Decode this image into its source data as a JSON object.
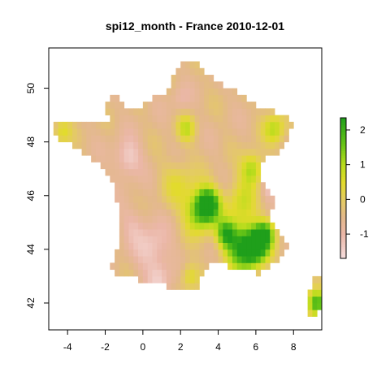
{
  "title": "spi12_month - France 2010-12-01",
  "chart_data": {
    "type": "heatmap",
    "title": "spi12_month - France 2010-12-01",
    "xlabel": "",
    "ylabel": "",
    "xlim": [
      -5,
      9.5
    ],
    "ylim": [
      41,
      51.5
    ],
    "x_ticks": [
      -4,
      -2,
      0,
      2,
      4,
      6,
      8
    ],
    "y_ticks": [
      42,
      44,
      46,
      48,
      50
    ],
    "x_tick_labels": [
      "-4",
      "-2",
      "0",
      "2",
      "4",
      "6",
      "8"
    ],
    "y_tick_labels": [
      "42",
      "44",
      "46",
      "48",
      "50"
    ],
    "legend": {
      "position": "right",
      "range": [
        -1.7,
        2.35
      ],
      "ticks": [
        -1,
        0,
        1,
        2
      ],
      "tick_labels": [
        "-1",
        "0",
        "1",
        "2"
      ],
      "colors": [
        "#f6dcdc",
        "#e8b4a4",
        "#e2c47a",
        "#e1d63a",
        "#b9dc1c",
        "#5bc215",
        "#1fa219"
      ]
    },
    "grid": false,
    "color_stops": [
      {
        "value": -1.7,
        "color": "#f6dede"
      },
      {
        "value": -1.0,
        "color": "#ebb7a8"
      },
      {
        "value": -0.5,
        "color": "#e3b98b"
      },
      {
        "value": 0.0,
        "color": "#e4cc61"
      },
      {
        "value": 0.5,
        "color": "#e2db2c"
      },
      {
        "value": 1.0,
        "color": "#b9dc1d"
      },
      {
        "value": 1.6,
        "color": "#66c416"
      },
      {
        "value": 2.35,
        "color": "#1f9f1b"
      }
    ],
    "grid_resolution_deg": 0.25,
    "regions": [
      {
        "name": "france",
        "polygon": [
          [
            -4.75,
            48.75
          ],
          [
            -4.75,
            48.25
          ],
          [
            -3.5,
            47.75
          ],
          [
            -2.5,
            47.25
          ],
          [
            -2.0,
            47.0
          ],
          [
            -1.5,
            46.25
          ],
          [
            -1.25,
            45.5
          ],
          [
            -1.25,
            44.5
          ],
          [
            -1.5,
            43.5
          ],
          [
            -1.75,
            43.25
          ],
          [
            -1.0,
            43.0
          ],
          [
            0.5,
            42.75
          ],
          [
            2.0,
            42.5
          ],
          [
            3.0,
            42.5
          ],
          [
            3.25,
            43.25
          ],
          [
            4.0,
            43.5
          ],
          [
            5.0,
            43.25
          ],
          [
            6.25,
            43.1
          ],
          [
            7.0,
            43.5
          ],
          [
            7.5,
            43.75
          ],
          [
            7.75,
            44.25
          ],
          [
            7.0,
            44.75
          ],
          [
            6.75,
            45.25
          ],
          [
            7.0,
            45.75
          ],
          [
            6.75,
            46.25
          ],
          [
            6.25,
            46.5
          ],
          [
            6.25,
            47.25
          ],
          [
            7.0,
            47.5
          ],
          [
            7.5,
            47.75
          ],
          [
            8.0,
            48.75
          ],
          [
            7.5,
            49.0
          ],
          [
            6.5,
            49.25
          ],
          [
            5.75,
            49.5
          ],
          [
            4.75,
            50.0
          ],
          [
            4.0,
            50.25
          ],
          [
            2.75,
            51.0
          ],
          [
            2.25,
            51.0
          ],
          [
            1.5,
            50.25
          ],
          [
            1.5,
            50.0
          ],
          [
            0.25,
            49.5
          ],
          [
            -0.25,
            49.25
          ],
          [
            -1.0,
            49.25
          ],
          [
            -1.25,
            49.75
          ],
          [
            -2.0,
            49.5
          ],
          [
            -1.75,
            48.75
          ],
          [
            -3.0,
            48.75
          ],
          [
            -4.0,
            48.75
          ]
        ]
      },
      {
        "name": "corsica",
        "polygon": [
          [
            9.25,
            43.0
          ],
          [
            9.5,
            43.0
          ],
          [
            9.5,
            42.0
          ],
          [
            9.25,
            41.5
          ],
          [
            9.0,
            41.5
          ],
          [
            8.75,
            41.75
          ],
          [
            8.75,
            42.25
          ],
          [
            9.0,
            42.75
          ]
        ]
      }
    ],
    "anomalies": [
      {
        "lon": 3.5,
        "lat": 45.7,
        "value": 2.3,
        "radius": 0.6
      },
      {
        "lon": 3.0,
        "lat": 45.4,
        "value": 1.5,
        "radius": 0.8
      },
      {
        "lon": 6.0,
        "lat": 44.1,
        "value": 2.3,
        "radius": 0.7
      },
      {
        "lon": 5.2,
        "lat": 44.1,
        "value": 1.8,
        "radius": 0.9
      },
      {
        "lon": 4.4,
        "lat": 44.6,
        "value": 1.6,
        "radius": 0.5
      },
      {
        "lon": 6.5,
        "lat": 44.6,
        "value": 1.6,
        "radius": 0.5
      },
      {
        "lon": 7.0,
        "lat": 48.5,
        "value": 0.9,
        "radius": 0.6
      },
      {
        "lon": 5.8,
        "lat": 47.0,
        "value": 1.2,
        "radius": 0.6
      },
      {
        "lon": 5.2,
        "lat": 45.8,
        "value": 0.6,
        "radius": 0.8
      },
      {
        "lon": 1.9,
        "lat": 46.5,
        "value": 0.3,
        "radius": 0.9
      },
      {
        "lon": 2.3,
        "lat": 48.5,
        "value": 0.7,
        "radius": 0.5
      },
      {
        "lon": -4.3,
        "lat": 48.4,
        "value": 0.5,
        "radius": 0.5
      },
      {
        "lon": 2.5,
        "lat": 43.0,
        "value": 0.6,
        "radius": 0.5
      },
      {
        "lon": 9.2,
        "lat": 42.0,
        "value": 2.2,
        "radius": 0.5
      },
      {
        "lon": -0.8,
        "lat": 47.4,
        "value": -1.5,
        "radius": 0.7
      },
      {
        "lon": 0.5,
        "lat": 44.0,
        "value": -1.4,
        "radius": 0.9
      },
      {
        "lon": -0.5,
        "lat": 45.0,
        "value": -1.0,
        "radius": 0.7
      },
      {
        "lon": 6.7,
        "lat": 46.3,
        "value": -1.3,
        "radius": 0.4
      },
      {
        "lon": 2.0,
        "lat": 49.6,
        "value": -0.9,
        "radius": 0.5
      },
      {
        "lon": 0.9,
        "lat": 42.9,
        "value": -1.2,
        "radius": 0.6
      }
    ],
    "base_value": -0.5
  }
}
